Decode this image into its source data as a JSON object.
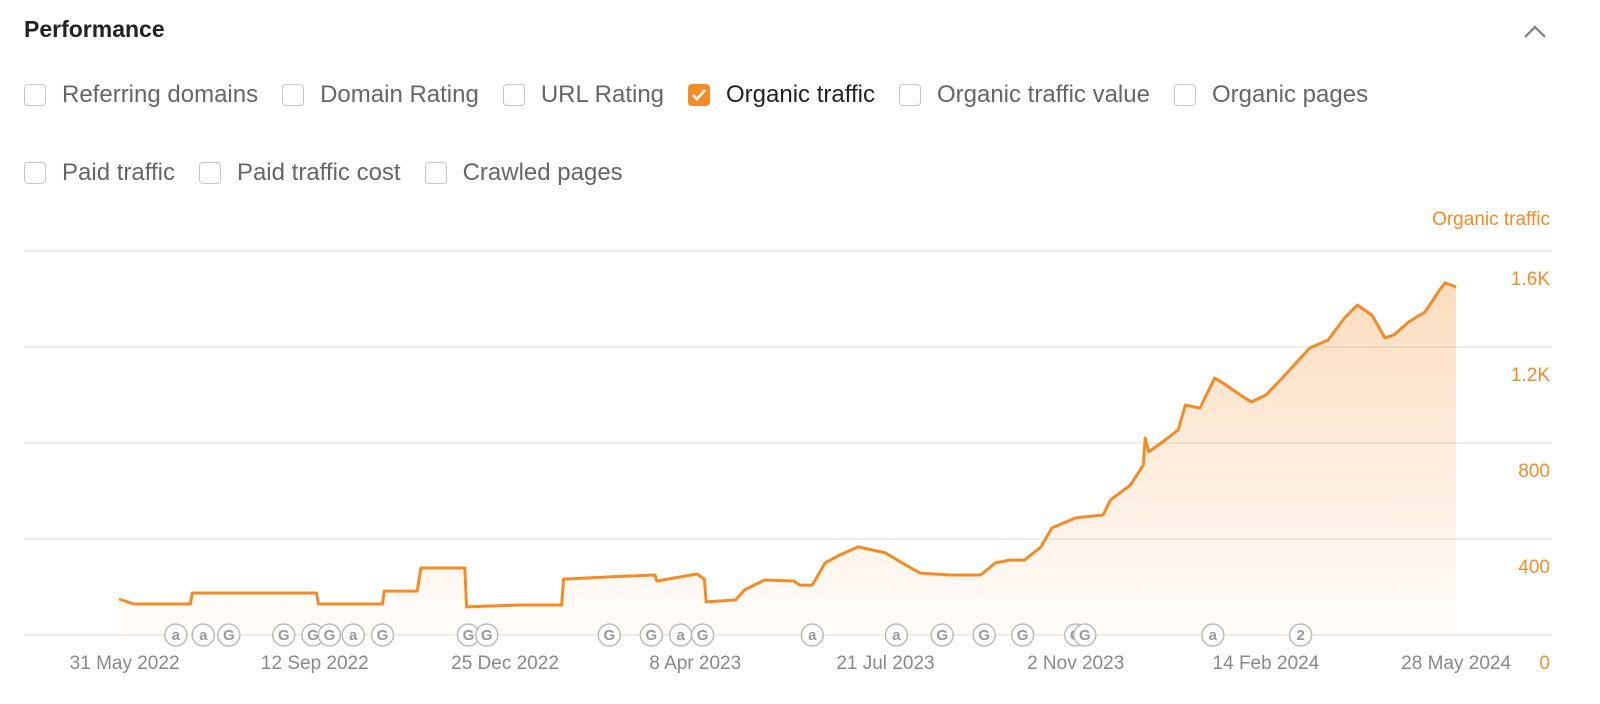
{
  "header": {
    "title": "Performance"
  },
  "controls": [
    {
      "label": "Referring domains",
      "checked": false
    },
    {
      "label": "Domain Rating",
      "checked": false
    },
    {
      "label": "URL Rating",
      "checked": false
    },
    {
      "label": "Organic traffic",
      "checked": true
    },
    {
      "label": "Organic traffic value",
      "checked": false
    },
    {
      "label": "Organic pages",
      "checked": false
    },
    {
      "label": "Paid traffic",
      "checked": false
    },
    {
      "label": "Paid traffic cost",
      "checked": false
    },
    {
      "label": "Crawled pages",
      "checked": false
    }
  ],
  "chart_data": {
    "type": "line",
    "y_label": "Organic traffic",
    "x": [
      "2022-05-28",
      "2022-06-05",
      "2022-07-06",
      "2022-07-07",
      "2022-09-13",
      "2022-09-14",
      "2022-10-19",
      "2022-10-20",
      "2022-11-07",
      "2022-11-09",
      "2022-12-03",
      "2022-12-04",
      "2023-01-02",
      "2023-01-25",
      "2023-01-26",
      "2023-02-20",
      "2023-03-17",
      "2023-03-18",
      "2023-04-09",
      "2023-04-13",
      "2023-04-14",
      "2023-04-30",
      "2023-05-05",
      "2023-05-16",
      "2023-06-01",
      "2023-06-04",
      "2023-06-11",
      "2023-06-18",
      "2023-06-26",
      "2023-07-06",
      "2023-07-21",
      "2023-08-01",
      "2023-08-09",
      "2023-08-25",
      "2023-09-11",
      "2023-09-19",
      "2023-09-27",
      "2023-10-05",
      "2023-10-14",
      "2023-10-20",
      "2023-11-02",
      "2023-11-07",
      "2023-11-17",
      "2023-11-21",
      "2023-12-02",
      "2023-12-09",
      "2023-12-10",
      "2023-12-12",
      "2023-12-21",
      "2023-12-28",
      "2024-01-01",
      "2024-01-09",
      "2024-01-17",
      "2024-01-23",
      "2024-01-31",
      "2024-02-06",
      "2024-02-14",
      "2024-02-22",
      "2024-03-03",
      "2024-03-09",
      "2024-03-19",
      "2024-03-28",
      "2024-04-04",
      "2024-04-12",
      "2024-04-19",
      "2024-04-24",
      "2024-05-02",
      "2024-05-11",
      "2024-05-19",
      "2024-05-22",
      "2024-05-28"
    ],
    "series": [
      {
        "name": "Organic traffic",
        "color": "#f28c28",
        "values": [
          150,
          129,
          129,
          175,
          175,
          129,
          129,
          183,
          183,
          279,
          279,
          117,
          125,
          125,
          233,
          242,
          250,
          225,
          254,
          233,
          138,
          146,
          188,
          229,
          225,
          208,
          208,
          300,
          333,
          367,
          342,
          292,
          258,
          250,
          250,
          300,
          312,
          312,
          367,
          446,
          488,
          492,
          500,
          563,
          625,
          708,
          821,
          763,
          813,
          854,
          958,
          946,
          1071,
          1042,
          1000,
          971,
          1000,
          1063,
          1146,
          1196,
          1229,
          1321,
          1375,
          1333,
          1238,
          1250,
          1304,
          1346,
          1438,
          1467,
          1450
        ]
      }
    ],
    "xlim": [
      "2022-04-06",
      "2024-06-21"
    ],
    "xticks": [
      {
        "value": "2022-05-31",
        "label": "31 May 2022"
      },
      {
        "value": "2022-09-12",
        "label": "12 Sep 2022"
      },
      {
        "value": "2022-12-25",
        "label": "25 Dec 2022"
      },
      {
        "value": "2023-04-08",
        "label": "8 Apr 2023"
      },
      {
        "value": "2023-07-21",
        "label": "21 Jul 2023"
      },
      {
        "value": "2023-11-02",
        "label": "2 Nov 2023"
      },
      {
        "value": "2024-02-14",
        "label": "14 Feb 2024"
      },
      {
        "value": "2024-05-28",
        "label": "28 May 2024"
      }
    ],
    "ylim": [
      0,
      1600
    ],
    "yticks": [
      0,
      400,
      800,
      {
        "value": 1200,
        "label": "1.2K"
      },
      {
        "value": 1600,
        "label": "1.6K"
      }
    ],
    "grid": true,
    "events": [
      {
        "x": "2022-06-28",
        "label": "a"
      },
      {
        "x": "2022-07-13",
        "label": "a"
      },
      {
        "x": "2022-07-27",
        "label": "G"
      },
      {
        "x": "2022-08-26",
        "label": "G"
      },
      {
        "x": "2022-09-11",
        "label": "G"
      },
      {
        "x": "2022-09-20",
        "label": "G"
      },
      {
        "x": "2022-10-03",
        "label": "a"
      },
      {
        "x": "2022-10-19",
        "label": "G"
      },
      {
        "x": "2022-12-05",
        "label": "G"
      },
      {
        "x": "2022-12-15",
        "label": "G"
      },
      {
        "x": "2023-02-20",
        "label": "G"
      },
      {
        "x": "2023-03-15",
        "label": "G"
      },
      {
        "x": "2023-03-31",
        "label": "a"
      },
      {
        "x": "2023-04-12",
        "label": "G"
      },
      {
        "x": "2023-06-11",
        "label": "a"
      },
      {
        "x": "2023-07-27",
        "label": "a"
      },
      {
        "x": "2023-08-21",
        "label": "G"
      },
      {
        "x": "2023-09-13",
        "label": "G"
      },
      {
        "x": "2023-10-04",
        "label": "G"
      },
      {
        "x": "2023-11-02",
        "label": "G"
      },
      {
        "x": "2023-11-07",
        "label": "G"
      },
      {
        "x": "2024-01-16",
        "label": "a"
      },
      {
        "x": "2024-03-04",
        "label": "2"
      }
    ]
  }
}
